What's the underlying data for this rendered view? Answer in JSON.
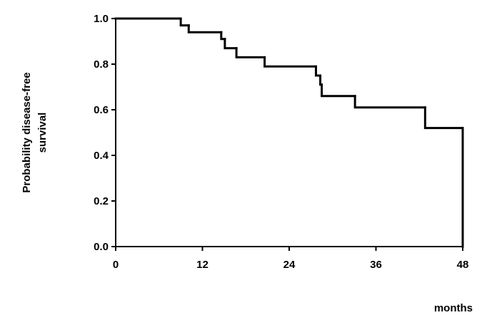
{
  "chart_data": {
    "type": "step",
    "xlabel": "months",
    "ylabel": [
      "Probability disease-free",
      "survival"
    ],
    "x": [
      0,
      9,
      10.1,
      14.6,
      15.1,
      16.7,
      20.6,
      27.7,
      28.3,
      28.5,
      33.1,
      42.8,
      48
    ],
    "values": [
      1,
      0.97,
      0.94,
      0.91,
      0.87,
      0.83,
      0.79,
      0.75,
      0.71,
      0.66,
      0.61,
      0.52,
      0
    ],
    "color": "#000000",
    "xlim": [
      0,
      48
    ],
    "xticks": [
      0,
      12,
      24,
      36,
      48
    ],
    "ylim": [
      0,
      1
    ],
    "yticks": [
      {
        "value": 0,
        "label": "0.0"
      },
      0.2,
      0.4,
      0.6,
      0.8,
      {
        "value": 1,
        "label": "1.0"
      }
    ]
  }
}
